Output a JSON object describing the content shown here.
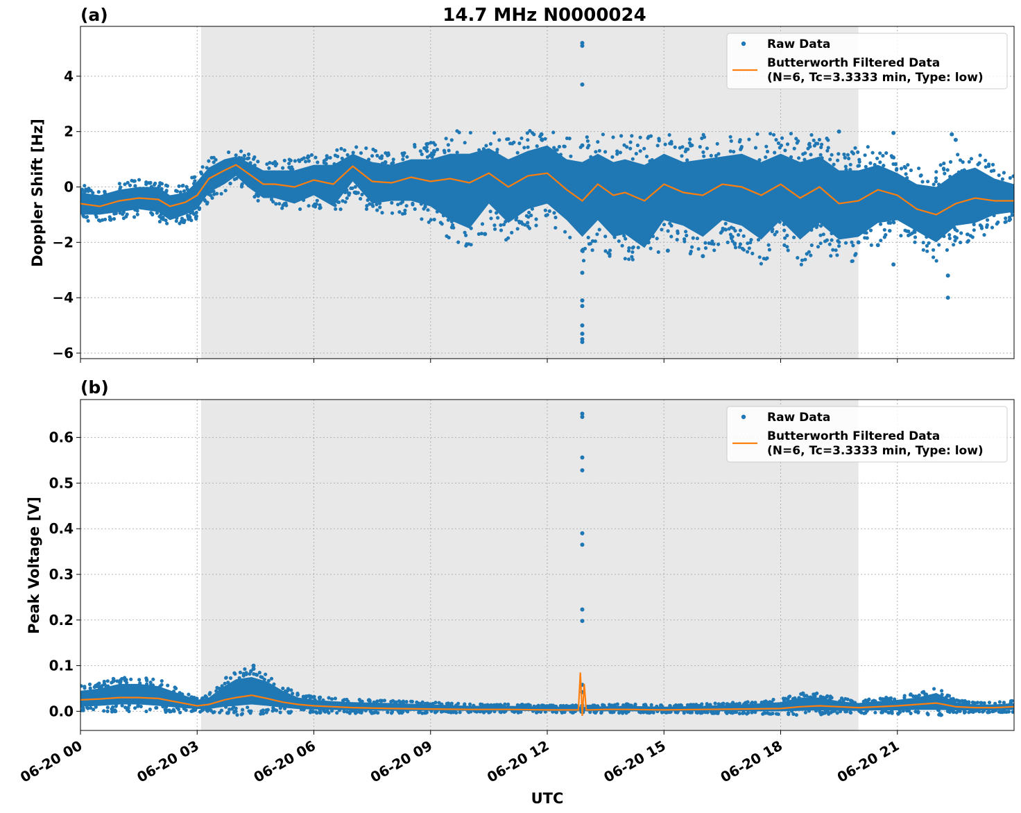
{
  "figure": {
    "title": "14.7 MHz N0000024",
    "xlabel": "UTC",
    "colors": {
      "raw": "#1f77b4",
      "filtered": "#ff7f0e",
      "shade": "#e8e8e8",
      "grid": "#b0b0b0"
    }
  },
  "chart_data": [
    {
      "type": "scatter",
      "panel_label": "(a)",
      "ylabel": "Doppler Shift [Hz]",
      "xlim": [
        0,
        24
      ],
      "ylim": [
        -6.2,
        5.8
      ],
      "yticks": [
        4,
        2,
        0,
        -2,
        -4,
        -6
      ],
      "ytick_labels": [
        "4",
        "2",
        "0",
        "−2",
        "−4",
        "−6"
      ],
      "grid": true,
      "shaded_region_hours": [
        3.1,
        20.0
      ],
      "legend": {
        "placement": "top-right",
        "raw_label": "Raw Data",
        "filtered_label_line1": "Butterworth Filtered Data",
        "filtered_label_line2": "(N=6, Tc=3.3333 min, Type: low)"
      },
      "series": [
        {
          "name": "Butterworth Filtered Data",
          "x": [
            0,
            0.5,
            1,
            1.5,
            2,
            2.3,
            2.7,
            3,
            3.3,
            3.7,
            4,
            4.3,
            4.7,
            5,
            5.5,
            6,
            6.5,
            7,
            7.5,
            8,
            8.5,
            9,
            9.5,
            10,
            10.5,
            11,
            11.5,
            12,
            12.5,
            12.9,
            13.3,
            13.7,
            14,
            14.5,
            15,
            15.5,
            16,
            16.5,
            17,
            17.5,
            18,
            18.5,
            19,
            19.5,
            20,
            20.5,
            21,
            21.5,
            22,
            22.5,
            23,
            23.5,
            24
          ],
          "values": [
            -0.6,
            -0.7,
            -0.5,
            -0.4,
            -0.45,
            -0.7,
            -0.55,
            -0.3,
            0.3,
            0.6,
            0.8,
            0.5,
            0.1,
            0.1,
            0.0,
            0.25,
            0.1,
            0.75,
            0.2,
            0.15,
            0.35,
            0.2,
            0.3,
            0.15,
            0.5,
            0.0,
            0.4,
            0.5,
            -0.1,
            -0.5,
            0.1,
            -0.3,
            -0.2,
            -0.5,
            0.1,
            -0.2,
            -0.3,
            0.1,
            0.0,
            -0.3,
            0.1,
            -0.4,
            0.0,
            -0.6,
            -0.5,
            -0.1,
            -0.3,
            -0.8,
            -1.0,
            -0.6,
            -0.4,
            -0.5,
            -0.5
          ]
        },
        {
          "name": "Raw Data",
          "band_x": [
            0,
            0.5,
            1,
            1.5,
            2,
            2.3,
            2.7,
            3,
            3.3,
            3.7,
            4,
            4.3,
            4.7,
            5,
            5.5,
            6,
            6.5,
            7,
            7.5,
            8,
            8.5,
            9,
            9.5,
            10,
            10.5,
            11,
            11.5,
            12,
            12.5,
            12.9,
            13.3,
            13.7,
            14,
            14.5,
            15,
            15.5,
            16,
            16.5,
            17,
            17.5,
            18,
            18.5,
            19,
            19.5,
            20,
            20.5,
            21,
            21.5,
            22,
            22.5,
            23,
            23.5,
            24
          ],
          "band_upper": [
            -0.2,
            -0.3,
            -0.1,
            0.0,
            0.0,
            -0.3,
            -0.2,
            0.2,
            0.7,
            1.0,
            1.1,
            0.9,
            0.6,
            0.6,
            0.6,
            0.8,
            0.8,
            1.2,
            0.9,
            0.8,
            1.0,
            1.0,
            1.2,
            1.2,
            1.4,
            1.0,
            1.3,
            1.5,
            1.0,
            0.9,
            1.2,
            0.9,
            1.0,
            0.8,
            1.2,
            0.9,
            1.0,
            1.1,
            1.2,
            0.9,
            1.2,
            0.9,
            1.1,
            0.6,
            0.6,
            0.8,
            0.5,
            0.1,
            0.0,
            0.5,
            0.7,
            0.3,
            0.1
          ],
          "band_lower": [
            -1.0,
            -1.0,
            -0.9,
            -0.8,
            -0.9,
            -1.2,
            -1.0,
            -0.8,
            -0.2,
            0.1,
            0.4,
            0.0,
            -0.4,
            -0.4,
            -0.6,
            -0.3,
            -0.7,
            0.2,
            -0.6,
            -0.5,
            -0.5,
            -0.7,
            -1.2,
            -1.5,
            -0.6,
            -1.3,
            -0.8,
            -0.6,
            -1.2,
            -1.8,
            -1.2,
            -1.8,
            -1.7,
            -2.2,
            -1.2,
            -1.4,
            -1.8,
            -1.2,
            -1.4,
            -1.9,
            -1.2,
            -1.9,
            -1.3,
            -1.9,
            -1.8,
            -1.3,
            -1.2,
            -1.6,
            -2.0,
            -1.4,
            -1.3,
            -1.0,
            -0.9
          ],
          "outliers_x": [
            12.9,
            12.9,
            12.9,
            12.9,
            12.9,
            12.9,
            12.9,
            12.9,
            12.9,
            12.9,
            12.9,
            12.9,
            11.85,
            19.5,
            20.0,
            20.9,
            20.9,
            22.4,
            22.5,
            22.3,
            22.3,
            20.5,
            16.0,
            15.1,
            14.6,
            10.4
          ],
          "outliers_y": [
            5.2,
            5.1,
            3.7,
            -5.6,
            -5.5,
            -5.3,
            -5.0,
            -4.3,
            -4.1,
            -3.1,
            -2.3,
            1.5,
            1.9,
            2.0,
            -2.0,
            1.95,
            -2.8,
            1.9,
            1.7,
            -4.0,
            -3.2,
            -2.1,
            -2.5,
            -2.3,
            -2.0,
            -1.7
          ]
        }
      ]
    },
    {
      "type": "scatter",
      "panel_label": "(b)",
      "ylabel": "Peak Voltage [V]",
      "xlim": [
        0,
        24
      ],
      "ylim": [
        -0.042,
        0.683
      ],
      "yticks": [
        0.0,
        0.1,
        0.2,
        0.3,
        0.4,
        0.5,
        0.6
      ],
      "ytick_labels": [
        "0.0",
        "0.1",
        "0.2",
        "0.3",
        "0.4",
        "0.5",
        "0.6"
      ],
      "xticks": [
        0,
        3,
        6,
        9,
        12,
        15,
        18,
        21
      ],
      "xtick_labels": [
        "06-20 00",
        "06-20 03",
        "06-20 06",
        "06-20 09",
        "06-20 12",
        "06-20 15",
        "06-20 18",
        "06-20 21"
      ],
      "grid": true,
      "shaded_region_hours": [
        3.1,
        20.0
      ],
      "legend": {
        "placement": "top-right",
        "raw_label": "Raw Data",
        "filtered_label_line1": "Butterworth Filtered Data",
        "filtered_label_line2": "(N=6, Tc=3.3333 min, Type: low)"
      },
      "series": [
        {
          "name": "Butterworth Filtered Data",
          "x": [
            0,
            0.5,
            1,
            1.5,
            2,
            2.5,
            3,
            3.3,
            3.7,
            4,
            4.4,
            4.8,
            5.2,
            5.6,
            6,
            6.5,
            7,
            8,
            9,
            10,
            11,
            12,
            12.8,
            12.85,
            12.9,
            12.95,
            13.0,
            13.1,
            13.5,
            14,
            15,
            16,
            17,
            18,
            18.5,
            19,
            19.5,
            20,
            20.5,
            21,
            21.5,
            22,
            22.2,
            22.5,
            23,
            23.5,
            24
          ],
          "values": [
            0.025,
            0.027,
            0.03,
            0.03,
            0.028,
            0.02,
            0.012,
            0.015,
            0.025,
            0.03,
            0.035,
            0.028,
            0.02,
            0.015,
            0.012,
            0.01,
            0.008,
            0.006,
            0.005,
            0.004,
            0.004,
            0.003,
            0.003,
            0.085,
            -0.01,
            0.06,
            0.003,
            0.003,
            0.004,
            0.004,
            0.003,
            0.004,
            0.005,
            0.006,
            0.01,
            0.012,
            0.01,
            0.008,
            0.01,
            0.012,
            0.015,
            0.018,
            0.015,
            0.01,
            0.008,
            0.008,
            0.01
          ]
        },
        {
          "name": "Raw Data",
          "band_x": [
            0,
            0.5,
            1,
            1.5,
            2,
            2.5,
            3,
            3.3,
            3.7,
            4,
            4.4,
            4.8,
            5.2,
            5.6,
            6,
            6.5,
            7,
            8,
            9,
            10,
            11,
            12,
            13,
            14,
            15,
            16,
            17,
            18,
            18.5,
            19,
            19.5,
            20,
            20.5,
            21,
            21.5,
            22,
            22.5,
            23,
            23.5,
            24
          ],
          "band_upper": [
            0.045,
            0.05,
            0.06,
            0.06,
            0.055,
            0.04,
            0.025,
            0.03,
            0.055,
            0.07,
            0.075,
            0.065,
            0.045,
            0.03,
            0.025,
            0.022,
            0.02,
            0.018,
            0.015,
            0.012,
            0.012,
            0.01,
            0.01,
            0.012,
            0.01,
            0.012,
            0.015,
            0.02,
            0.03,
            0.03,
            0.022,
            0.018,
            0.022,
            0.025,
            0.03,
            0.04,
            0.02,
            0.015,
            0.015,
            0.018
          ],
          "band_lower": [
            0.01,
            0.012,
            0.015,
            0.015,
            0.012,
            0.008,
            0.005,
            0.005,
            0.01,
            0.012,
            0.015,
            0.012,
            0.008,
            0.005,
            0.004,
            0.003,
            0.002,
            0.001,
            0.001,
            0.001,
            0.001,
            0.0,
            0.0,
            0.0,
            0.0,
            0.0,
            0.0,
            0.0,
            0.001,
            0.002,
            0.001,
            0.001,
            0.002,
            0.002,
            0.003,
            0.003,
            0.002,
            0.002,
            0.002,
            0.003
          ],
          "outliers_x": [
            12.9,
            12.9,
            12.9,
            12.9,
            12.9,
            12.9,
            12.9,
            12.9,
            12.9,
            12.9,
            4.45,
            4.45
          ],
          "outliers_y": [
            0.652,
            0.645,
            0.556,
            0.528,
            0.39,
            0.365,
            0.223,
            0.198,
            0.058,
            0.042,
            0.1,
            0.093
          ]
        }
      ]
    }
  ]
}
